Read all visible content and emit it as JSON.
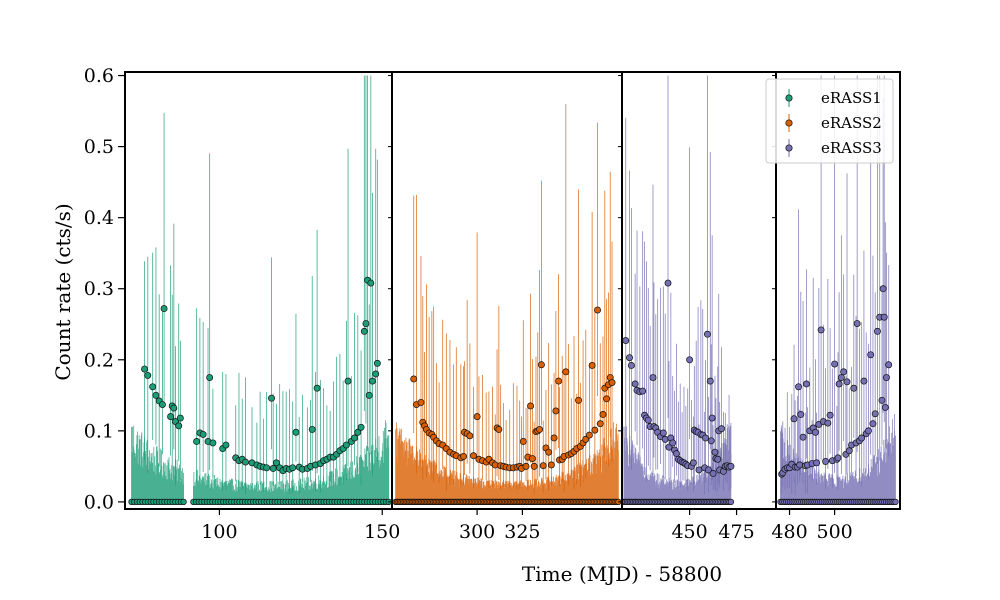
{
  "chart_data": {
    "type": "scatter",
    "xlabel": "Time (MJD) - 58800",
    "ylabel": "Count rate (cts/s)",
    "ylim": [
      -0.01,
      0.605
    ],
    "yticks": [
      0.0,
      0.1,
      0.2,
      0.3,
      0.4,
      0.5,
      0.6
    ],
    "legend": {
      "placement": "top-right",
      "entries": [
        "eRASS1",
        "eRASS2",
        "eRASS3"
      ]
    },
    "panels": [
      {
        "series": "eRASS1",
        "xlim": [
          71,
          153
        ],
        "xticks": [
          100,
          150
        ],
        "color": "#1b9e77",
        "band_max": [
          0.125,
          0.1,
          0.082,
          0.07,
          0.06,
          0.052,
          0.045,
          0.04,
          0.035,
          0.033,
          0.031,
          0.03,
          0.03,
          0.03,
          0.031,
          0.033,
          0.036,
          0.04,
          0.046,
          0.053,
          0.063,
          0.078,
          0.1,
          0.13
        ],
        "detections": [
          [
            77.0,
            0.187
          ],
          [
            78.0,
            0.178
          ],
          [
            79.5,
            0.162
          ],
          [
            80.5,
            0.15
          ],
          [
            81.5,
            0.142
          ],
          [
            82.5,
            0.137
          ],
          [
            83.0,
            0.272
          ],
          [
            85.0,
            0.12
          ],
          [
            85.5,
            0.135
          ],
          [
            86.0,
            0.132
          ],
          [
            86.5,
            0.113
          ],
          [
            87.5,
            0.107
          ],
          [
            88.0,
            0.118
          ],
          [
            93.0,
            0.085
          ],
          [
            94.0,
            0.097
          ],
          [
            95.0,
            0.095
          ],
          [
            96.5,
            0.085
          ],
          [
            97.0,
            0.175
          ],
          [
            98.0,
            0.083
          ],
          [
            101.0,
            0.075
          ],
          [
            102.0,
            0.08
          ],
          [
            105.0,
            0.062
          ],
          [
            106.0,
            0.058
          ],
          [
            107.0,
            0.06
          ],
          [
            108.0,
            0.056
          ],
          [
            110.0,
            0.055
          ],
          [
            111.5,
            0.052
          ],
          [
            112.5,
            0.05
          ],
          [
            113.5,
            0.049
          ],
          [
            114.5,
            0.048
          ],
          [
            116.0,
            0.146
          ],
          [
            116.5,
            0.047
          ],
          [
            117.5,
            0.055
          ],
          [
            118.5,
            0.048
          ],
          [
            119.5,
            0.044
          ],
          [
            120.5,
            0.047
          ],
          [
            121.5,
            0.046
          ],
          [
            122.5,
            0.048
          ],
          [
            123.5,
            0.098
          ],
          [
            124.5,
            0.049
          ],
          [
            125.5,
            0.046
          ],
          [
            127.0,
            0.047
          ],
          [
            128.0,
            0.05
          ],
          [
            128.5,
            0.102
          ],
          [
            129.5,
            0.052
          ],
          [
            130.0,
            0.16
          ],
          [
            131.0,
            0.054
          ],
          [
            132.0,
            0.058
          ],
          [
            133.0,
            0.06
          ],
          [
            134.0,
            0.063
          ],
          [
            135.0,
            0.063
          ],
          [
            136.0,
            0.067
          ],
          [
            137.0,
            0.072
          ],
          [
            138.0,
            0.075
          ],
          [
            139.0,
            0.08
          ],
          [
            139.5,
            0.17
          ],
          [
            140.5,
            0.085
          ],
          [
            141.5,
            0.09
          ],
          [
            142.5,
            0.098
          ],
          [
            143.5,
            0.105
          ],
          [
            144.5,
            0.24
          ],
          [
            145.0,
            0.251
          ],
          [
            145.5,
            0.312
          ],
          [
            146.5,
            0.308
          ],
          [
            146.0,
            0.15
          ],
          [
            147.0,
            0.17
          ],
          [
            148.0,
            0.18
          ],
          [
            148.5,
            0.195
          ]
        ],
        "zero_ranges": [
          [
            73,
            89
          ],
          [
            92,
            152
          ]
        ]
      },
      {
        "series": "eRASS2",
        "xlim": [
          253,
          380
        ],
        "xticks": [
          300,
          325
        ],
        "color": "#d95f02",
        "band_max": [
          0.118,
          0.096,
          0.08,
          0.067,
          0.057,
          0.049,
          0.043,
          0.039,
          0.035,
          0.033,
          0.031,
          0.03,
          0.03,
          0.031,
          0.033,
          0.036,
          0.04,
          0.046,
          0.054,
          0.064,
          0.079,
          0.1,
          0.126
        ],
        "detections": [
          [
            265.0,
            0.173
          ],
          [
            266.5,
            0.137
          ],
          [
            269.0,
            0.14
          ],
          [
            270.0,
            0.112
          ],
          [
            271.0,
            0.107
          ],
          [
            272.0,
            0.102
          ],
          [
            273.5,
            0.097
          ],
          [
            275.0,
            0.095
          ],
          [
            276.0,
            0.091
          ],
          [
            277.5,
            0.086
          ],
          [
            279.0,
            0.082
          ],
          [
            281.0,
            0.08
          ],
          [
            283.0,
            0.075
          ],
          [
            285.0,
            0.07
          ],
          [
            287.0,
            0.067
          ],
          [
            288.5,
            0.065
          ],
          [
            291.0,
            0.062
          ],
          [
            292.5,
            0.064
          ],
          [
            293.0,
            0.098
          ],
          [
            294.5,
            0.096
          ],
          [
            296.0,
            0.093
          ],
          [
            298.0,
            0.065
          ],
          [
            300.0,
            0.12
          ],
          [
            301.0,
            0.06
          ],
          [
            303.0,
            0.058
          ],
          [
            305.0,
            0.056
          ],
          [
            306.5,
            0.06
          ],
          [
            308.5,
            0.055
          ],
          [
            310.0,
            0.052
          ],
          [
            311.0,
            0.104
          ],
          [
            312.0,
            0.102
          ],
          [
            313.0,
            0.051
          ],
          [
            314.5,
            0.05
          ],
          [
            316.0,
            0.049
          ],
          [
            318.0,
            0.048
          ],
          [
            320.0,
            0.048
          ],
          [
            322.0,
            0.049
          ],
          [
            323.5,
            0.05
          ],
          [
            324.5,
            0.047
          ],
          [
            325.5,
            0.085
          ],
          [
            327.0,
            0.05
          ],
          [
            328.0,
            0.063
          ],
          [
            329.5,
            0.135
          ],
          [
            330.5,
            0.061
          ],
          [
            331.5,
            0.05
          ],
          [
            332.5,
            0.099
          ],
          [
            333.5,
            0.1
          ],
          [
            334.5,
            0.102
          ],
          [
            335.5,
            0.193
          ],
          [
            336.5,
            0.051
          ],
          [
            338.0,
            0.076
          ],
          [
            339.5,
            0.07
          ],
          [
            341.0,
            0.052
          ],
          [
            342.5,
            0.09
          ],
          [
            343.5,
            0.128
          ],
          [
            345.0,
            0.17
          ],
          [
            345.5,
            0.059
          ],
          [
            347.0,
            0.06
          ],
          [
            348.0,
            0.064
          ],
          [
            349.0,
            0.183
          ],
          [
            350.5,
            0.066
          ],
          [
            352.0,
            0.068
          ],
          [
            353.5,
            0.071
          ],
          [
            355.0,
            0.075
          ],
          [
            356.0,
            0.143
          ],
          [
            357.0,
            0.078
          ],
          [
            358.5,
            0.083
          ],
          [
            360.0,
            0.088
          ],
          [
            362.0,
            0.094
          ],
          [
            363.5,
            0.192
          ],
          [
            365.0,
            0.101
          ],
          [
            366.5,
            0.27
          ],
          [
            368.0,
            0.11
          ],
          [
            369.5,
            0.123
          ],
          [
            370.5,
            0.16
          ],
          [
            371.5,
            0.145
          ],
          [
            372.5,
            0.165
          ],
          [
            373.5,
            0.175
          ],
          [
            374.5,
            0.168
          ]
        ],
        "zero_ranges": [
          [
            255,
            378
          ]
        ]
      },
      {
        "series": "eRASS3",
        "xlim": [
          414,
          496
        ],
        "xticks": [
          450,
          475
        ],
        "color": "#7570b3",
        "band_max": [
          0.12,
          0.097,
          0.079,
          0.066,
          0.056,
          0.048,
          0.042,
          0.038,
          0.035,
          0.033,
          0.032,
          0.032,
          0.034,
          0.037,
          0.041,
          0.047,
          0.055,
          0.066,
          0.08,
          0.098,
          0.12
        ],
        "detections": [
          [
            416.0,
            0.227
          ],
          [
            418.0,
            0.203
          ],
          [
            419.0,
            0.192
          ],
          [
            421.0,
            0.166
          ],
          [
            422.0,
            0.157
          ],
          [
            423.5,
            0.155
          ],
          [
            425.0,
            0.156
          ],
          [
            426.0,
            0.122
          ],
          [
            427.0,
            0.118
          ],
          [
            428.0,
            0.115
          ],
          [
            429.0,
            0.106
          ],
          [
            430.5,
            0.175
          ],
          [
            431.0,
            0.106
          ],
          [
            432.0,
            0.104
          ],
          [
            433.0,
            0.098
          ],
          [
            434.5,
            0.092
          ],
          [
            436.0,
            0.097
          ],
          [
            437.0,
            0.088
          ],
          [
            438.5,
            0.308
          ],
          [
            439.0,
            0.077
          ],
          [
            440.0,
            0.09
          ],
          [
            441.0,
            0.083
          ],
          [
            442.0,
            0.073
          ],
          [
            443.0,
            0.068
          ],
          [
            444.0,
            0.06
          ],
          [
            445.0,
            0.058
          ],
          [
            446.0,
            0.056
          ],
          [
            447.0,
            0.055
          ],
          [
            448.0,
            0.053
          ],
          [
            449.0,
            0.051
          ],
          [
            450.0,
            0.2
          ],
          [
            451.0,
            0.05
          ],
          [
            452.0,
            0.055
          ],
          [
            452.5,
            0.101
          ],
          [
            453.5,
            0.099
          ],
          [
            454.5,
            0.098
          ],
          [
            455.0,
            0.045
          ],
          [
            456.0,
            0.095
          ],
          [
            457.0,
            0.094
          ],
          [
            458.0,
            0.048
          ],
          [
            458.5,
            0.09
          ],
          [
            459.5,
            0.236
          ],
          [
            460.0,
            0.045
          ],
          [
            461.0,
            0.17
          ],
          [
            461.5,
            0.086
          ],
          [
            462.0,
            0.118
          ],
          [
            462.5,
            0.04
          ],
          [
            463.5,
            0.07
          ],
          [
            464.0,
            0.061
          ],
          [
            465.0,
            0.06
          ],
          [
            465.5,
            0.1
          ],
          [
            466.0,
            0.045
          ],
          [
            467.0,
            0.103
          ],
          [
            468.0,
            0.043
          ],
          [
            469.0,
            0.05
          ],
          [
            470.0,
            0.051
          ],
          [
            471.0,
            0.049
          ],
          [
            472.0,
            0.05
          ]
        ],
        "zero_ranges": [
          [
            415,
            472
          ]
        ]
      },
      {
        "series": "eRASS3",
        "xlim": [
          474,
          529
        ],
        "xticks": [
          480,
          500
        ],
        "color": "#7570b3",
        "band_max": [
          0.11,
          0.088,
          0.072,
          0.061,
          0.053,
          0.047,
          0.043,
          0.04,
          0.039,
          0.04,
          0.043,
          0.048,
          0.056,
          0.067,
          0.082,
          0.102,
          0.128
        ],
        "detections": [
          [
            476.5,
            0.039
          ],
          [
            477.0,
            0.041
          ],
          [
            478.0,
            0.046
          ],
          [
            479.0,
            0.048
          ],
          [
            480.0,
            0.048
          ],
          [
            481.0,
            0.053
          ],
          [
            482.0,
            0.117
          ],
          [
            482.5,
            0.049
          ],
          [
            483.5,
            0.049
          ],
          [
            484.0,
            0.162
          ],
          [
            484.5,
            0.052
          ],
          [
            485.0,
            0.123
          ],
          [
            486.0,
            0.091
          ],
          [
            487.0,
            0.051
          ],
          [
            487.5,
            0.166
          ],
          [
            488.0,
            0.052
          ],
          [
            489.0,
            0.1
          ],
          [
            490.0,
            0.054
          ],
          [
            490.5,
            0.104
          ],
          [
            491.5,
            0.098
          ],
          [
            492.0,
            0.055
          ],
          [
            493.0,
            0.109
          ],
          [
            494.0,
            0.242
          ],
          [
            495.0,
            0.113
          ],
          [
            496.0,
            0.057
          ],
          [
            497.0,
            0.111
          ],
          [
            498.0,
            0.122
          ],
          [
            499.0,
            0.058
          ],
          [
            500.0,
            0.194
          ],
          [
            501.0,
            0.06
          ],
          [
            501.5,
            0.062
          ],
          [
            502.0,
            0.166
          ],
          [
            503.0,
            0.175
          ],
          [
            504.0,
            0.183
          ],
          [
            505.0,
            0.067
          ],
          [
            505.5,
            0.169
          ],
          [
            506.5,
            0.072
          ],
          [
            507.5,
            0.08
          ],
          [
            508.5,
            0.16
          ],
          [
            509.5,
            0.083
          ],
          [
            510.0,
            0.251
          ],
          [
            511.0,
            0.086
          ],
          [
            512.0,
            0.09
          ],
          [
            513.0,
            0.17
          ],
          [
            514.0,
            0.096
          ],
          [
            515.0,
            0.1
          ],
          [
            516.0,
            0.207
          ],
          [
            517.0,
            0.11
          ],
          [
            518.0,
            0.124
          ],
          [
            519.0,
            0.24
          ],
          [
            520.0,
            0.26
          ],
          [
            521.0,
            0.143
          ],
          [
            521.5,
            0.3
          ],
          [
            522.0,
            0.26
          ],
          [
            522.5,
            0.133
          ],
          [
            523.0,
            0.175
          ],
          [
            524.0,
            0.193
          ]
        ],
        "zero_ranges": [
          [
            476,
            527
          ]
        ]
      }
    ]
  }
}
